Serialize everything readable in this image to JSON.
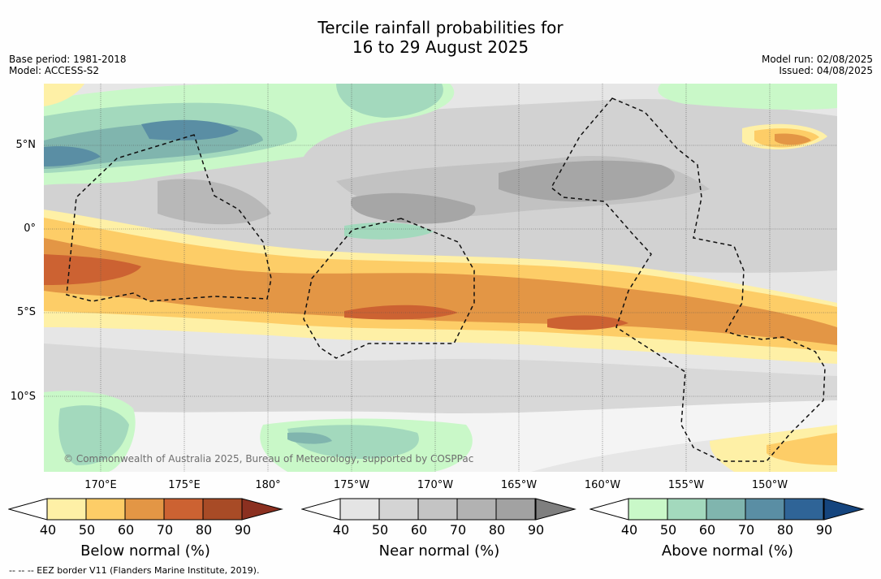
{
  "title_line1": "Tercile rainfall probabilities for",
  "title_line2": "16 to 29 August 2025",
  "meta_left": [
    "Base period: 1981-2018",
    "Model: ACCESS-S2"
  ],
  "meta_right": [
    "Model run: 02/08/2025",
    "Issued: 04/08/2025"
  ],
  "lat_labels": [
    "5°N",
    "0°",
    "5°S",
    "10°S"
  ],
  "lon_labels": [
    "170°E",
    "175°E",
    "180°",
    "175°W",
    "170°W",
    "165°W",
    "160°W",
    "155°W",
    "150°W"
  ],
  "copyright": "© Commonwealth of Australia 2025, Bureau of Meteorology, supported by COSPPac",
  "footer": "-- -- -- EEZ border V11 (Flanders Marine Institute, 2019).",
  "colorbars": [
    {
      "label": "Below normal (%)",
      "ticks": [
        "40",
        "50",
        "60",
        "70",
        "80",
        "90"
      ],
      "colors": [
        "#fef0a6",
        "#fdcd67",
        "#e39645",
        "#cc6232",
        "#a84b26",
        "#8b3020"
      ]
    },
    {
      "label": "Near normal (%)",
      "ticks": [
        "40",
        "50",
        "60",
        "70",
        "80",
        "90"
      ],
      "colors": [
        "#e4e4e4",
        "#d4d4d4",
        "#c4c4c4",
        "#b2b2b2",
        "#a2a2a2",
        "#7f7f7f"
      ]
    },
    {
      "label": "Above normal (%)",
      "ticks": [
        "40",
        "50",
        "60",
        "70",
        "80",
        "90"
      ],
      "colors": [
        "#c9f8c8",
        "#a3d9bd",
        "#80b5ae",
        "#5a8ea4",
        "#2f6497",
        "#15457e"
      ]
    }
  ]
}
